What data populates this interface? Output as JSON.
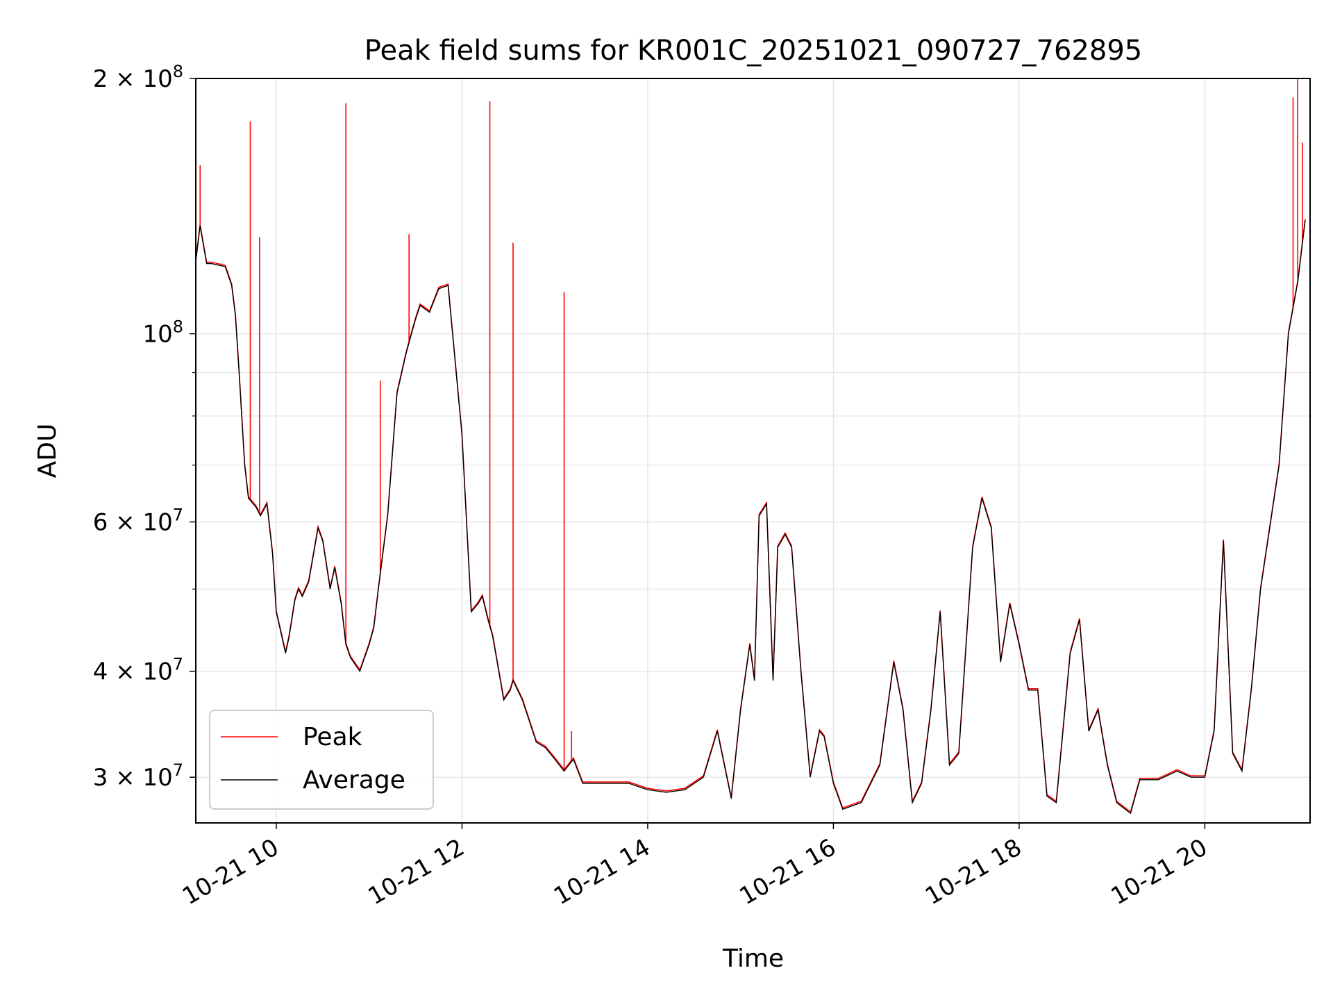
{
  "chart_data": {
    "type": "line",
    "title": "Peak field sums for KR001C_20251021_090727_762895",
    "xlabel": "Time",
    "ylabel": "ADU",
    "yscale": "log",
    "ylim": [
      26500000,
      200000000
    ],
    "xlim": [
      "2025-10-21 09:08",
      "2025-10-21 21:08"
    ],
    "grid": true,
    "legend": {
      "placement": "lower-left",
      "entries": [
        "Peak",
        "Average"
      ]
    },
    "x_ticks": [
      "10-21 10",
      "10-21 12",
      "10-21 14",
      "10-21 16",
      "10-21 18",
      "10-21 20"
    ],
    "x_tick_hours": [
      10,
      12,
      14,
      16,
      18,
      20
    ],
    "y_ticks": [
      {
        "value": 30000000,
        "mantissa": "3",
        "exponent": "7"
      },
      {
        "value": 40000000,
        "mantissa": "4",
        "exponent": "7"
      },
      {
        "value": 60000000,
        "mantissa": "6",
        "exponent": "7"
      },
      {
        "value": 100000000,
        "mantissa": "",
        "exponent": "8"
      },
      {
        "value": 200000000,
        "mantissa": "2",
        "exponent": "8"
      }
    ],
    "y_minor_ticks": [
      50000000,
      70000000,
      80000000,
      90000000
    ],
    "colors": {
      "peak": "#ff0000",
      "average": "#000000",
      "grid": "#e6e6e6"
    },
    "series": [
      {
        "name": "Average",
        "x_hours": [
          9.13,
          9.18,
          9.25,
          9.3,
          9.45,
          9.52,
          9.56,
          9.6,
          9.66,
          9.7,
          9.78,
          9.83,
          9.9,
          9.96,
          10.0,
          10.1,
          10.14,
          10.2,
          10.24,
          10.28,
          10.35,
          10.45,
          10.5,
          10.58,
          10.63,
          10.7,
          10.75,
          10.8,
          10.9,
          11.0,
          11.05,
          11.1,
          11.2,
          11.3,
          11.4,
          11.5,
          11.55,
          11.65,
          11.75,
          11.85,
          12.0,
          12.1,
          12.17,
          12.22,
          12.28,
          12.33,
          12.45,
          12.52,
          12.55,
          12.65,
          12.8,
          12.9,
          13.0,
          13.1,
          13.2,
          13.3,
          13.5,
          13.8,
          14.0,
          14.2,
          14.4,
          14.6,
          14.75,
          14.9,
          15.0,
          15.1,
          15.15,
          15.2,
          15.28,
          15.35,
          15.4,
          15.48,
          15.55,
          15.65,
          15.75,
          15.85,
          15.9,
          16.0,
          16.1,
          16.3,
          16.5,
          16.65,
          16.75,
          16.85,
          16.95,
          17.05,
          17.15,
          17.25,
          17.35,
          17.5,
          17.6,
          17.7,
          17.8,
          17.9,
          18.0,
          18.1,
          18.2,
          18.3,
          18.4,
          18.55,
          18.65,
          18.75,
          18.85,
          18.95,
          19.05,
          19.2,
          19.3,
          19.5,
          19.7,
          19.85,
          20.0,
          20.1,
          20.2,
          20.3,
          20.4,
          20.5,
          20.6,
          20.8,
          20.9,
          21.0,
          21.08
        ],
        "values": [
          121000000,
          134000000,
          121000000,
          121000000,
          120000000,
          114000000,
          105000000,
          90000000,
          70000000,
          64000000,
          62500000,
          61000000,
          63000000,
          55000000,
          47000000,
          42000000,
          44000000,
          48500000,
          50000000,
          49000000,
          51000000,
          59000000,
          57000000,
          50000000,
          53000000,
          48000000,
          43000000,
          41500000,
          40000000,
          43000000,
          45000000,
          50000000,
          61000000,
          85000000,
          95000000,
          104000000,
          108000000,
          106000000,
          113000000,
          114000000,
          76000000,
          47000000,
          48000000,
          49000000,
          46000000,
          44000000,
          37000000,
          38000000,
          39000000,
          37000000,
          33000000,
          32500000,
          31500000,
          30500000,
          31500000,
          29500000,
          29500000,
          29500000,
          29000000,
          28800000,
          29000000,
          30000000,
          34000000,
          28300000,
          36000000,
          43000000,
          39000000,
          61000000,
          63000000,
          39000000,
          56000000,
          58000000,
          56000000,
          40000000,
          30000000,
          34000000,
          33500000,
          29500000,
          27500000,
          28000000,
          31000000,
          41000000,
          36000000,
          28000000,
          29500000,
          36000000,
          47000000,
          31000000,
          32000000,
          56000000,
          64000000,
          59000000,
          41000000,
          48000000,
          43000000,
          38000000,
          38000000,
          28500000,
          28000000,
          42000000,
          46000000,
          34000000,
          36000000,
          31000000,
          28000000,
          27200000,
          29800000,
          29800000,
          30500000,
          30000000,
          30000000,
          34000000,
          57000000,
          32000000,
          30500000,
          38000000,
          50000000,
          70000000,
          100000000,
          115000000,
          136000000
        ]
      },
      {
        "name": "Peak",
        "spikes": [
          {
            "x_hour": 9.18,
            "value": 158000000
          },
          {
            "x_hour": 9.72,
            "value": 178000000
          },
          {
            "x_hour": 9.82,
            "value": 130000000
          },
          {
            "x_hour": 10.75,
            "value": 187000000
          },
          {
            "x_hour": 11.12,
            "value": 88000000
          },
          {
            "x_hour": 11.43,
            "value": 131000000
          },
          {
            "x_hour": 12.3,
            "value": 188000000
          },
          {
            "x_hour": 12.55,
            "value": 128000000
          },
          {
            "x_hour": 13.1,
            "value": 112000000
          },
          {
            "x_hour": 13.18,
            "value": 34000000
          },
          {
            "x_hour": 20.95,
            "value": 190000000
          },
          {
            "x_hour": 21.0,
            "value": 200000000
          },
          {
            "x_hour": 21.05,
            "value": 168000000
          }
        ]
      }
    ]
  }
}
